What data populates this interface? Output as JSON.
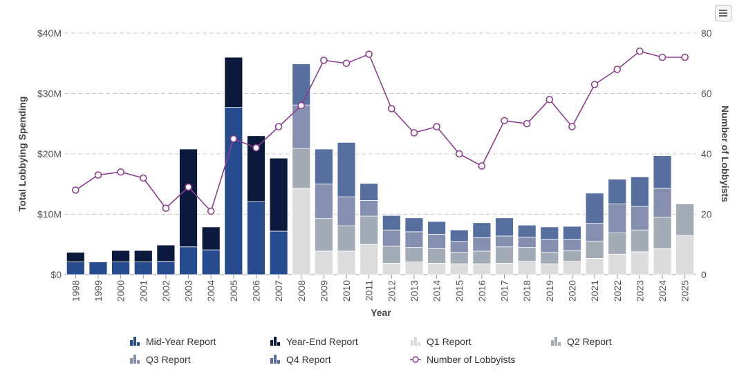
{
  "chart_data": {
    "type": "bar",
    "stacked": true,
    "categories": [
      "1998",
      "1999",
      "2000",
      "2001",
      "2002",
      "2003",
      "2004",
      "2005",
      "2006",
      "2007",
      "2008",
      "2009",
      "2010",
      "2011",
      "2012",
      "2013",
      "2014",
      "2015",
      "2016",
      "2017",
      "2018",
      "2019",
      "2020",
      "2021",
      "2022",
      "2023",
      "2024",
      "2025"
    ],
    "xlabel": "Year",
    "ylabel": "Total Lobbying Spending",
    "y2label": "Number of Lobbyists",
    "ylim": [
      0,
      40
    ],
    "y2lim": [
      0,
      80
    ],
    "yticks": [
      "$0",
      "$10M",
      "$20M",
      "$30M",
      "$40M"
    ],
    "y2ticks": [
      "0",
      "20",
      "40",
      "60",
      "80"
    ],
    "grid": true,
    "legend_position": "bottom",
    "series": [
      {
        "name": "Mid-Year Report",
        "color": "#274b8f",
        "values": [
          2.1,
          2.1,
          2.1,
          2.1,
          2.2,
          4.6,
          4.1,
          27.7,
          12.1,
          7.2,
          0,
          0,
          0,
          0,
          0,
          0,
          0,
          0,
          0,
          0,
          0,
          0,
          0,
          0,
          0,
          0,
          0,
          0
        ]
      },
      {
        "name": "Year-End Report",
        "color": "#0b1a3c",
        "values": [
          1.6,
          0,
          1.9,
          1.9,
          2.7,
          16.2,
          3.8,
          8.3,
          10.9,
          12.1,
          0,
          0,
          0,
          0,
          0,
          0,
          0,
          0,
          0,
          0,
          0,
          0,
          0,
          0,
          0,
          0,
          0,
          0
        ]
      },
      {
        "name": "Q1 Report",
        "color": "#dcdcdc",
        "values": [
          0,
          0,
          0,
          0,
          0,
          0,
          0,
          0,
          0,
          0,
          14.3,
          3.9,
          3.9,
          5.0,
          1.9,
          2.1,
          1.9,
          1.8,
          1.8,
          1.9,
          2.2,
          1.8,
          2.2,
          2.7,
          3.4,
          3.8,
          4.3,
          6.5
        ]
      },
      {
        "name": "Q2 Report",
        "color": "#a2abb6",
        "values": [
          0,
          0,
          0,
          0,
          0,
          0,
          0,
          0,
          0,
          0,
          6.6,
          5.4,
          4.2,
          4.7,
          2.8,
          2.4,
          2.4,
          1.9,
          2.1,
          2.7,
          2.3,
          1.9,
          1.8,
          2.8,
          3.5,
          3.6,
          5.2,
          5.2
        ]
      },
      {
        "name": "Q3 Report",
        "color": "#8590b0",
        "values": [
          0,
          0,
          0,
          0,
          0,
          0,
          0,
          0,
          0,
          0,
          7.2,
          5.7,
          4.8,
          2.6,
          2.7,
          2.6,
          2.4,
          1.8,
          2.2,
          1.8,
          1.7,
          2.1,
          1.8,
          3.0,
          4.8,
          3.9,
          4.8,
          0
        ]
      },
      {
        "name": "Q4 Report",
        "color": "#566f9f",
        "values": [
          0,
          0,
          0,
          0,
          0,
          0,
          0,
          0,
          0,
          0,
          6.8,
          5.8,
          9.0,
          2.8,
          2.4,
          2.3,
          2.1,
          1.9,
          2.5,
          3.0,
          2.0,
          2.1,
          2.2,
          5.0,
          4.1,
          4.9,
          5.4,
          0
        ]
      }
    ],
    "line_series": {
      "name": "Number of Lobbyists",
      "color": "#8b3f8f",
      "axis": "right",
      "values": [
        28,
        33,
        34,
        32,
        22,
        29,
        21,
        45,
        42,
        49,
        56,
        71,
        70,
        73,
        55,
        47,
        49,
        40,
        36,
        51,
        50,
        58,
        49,
        63,
        68,
        74,
        72,
        72
      ]
    }
  }
}
